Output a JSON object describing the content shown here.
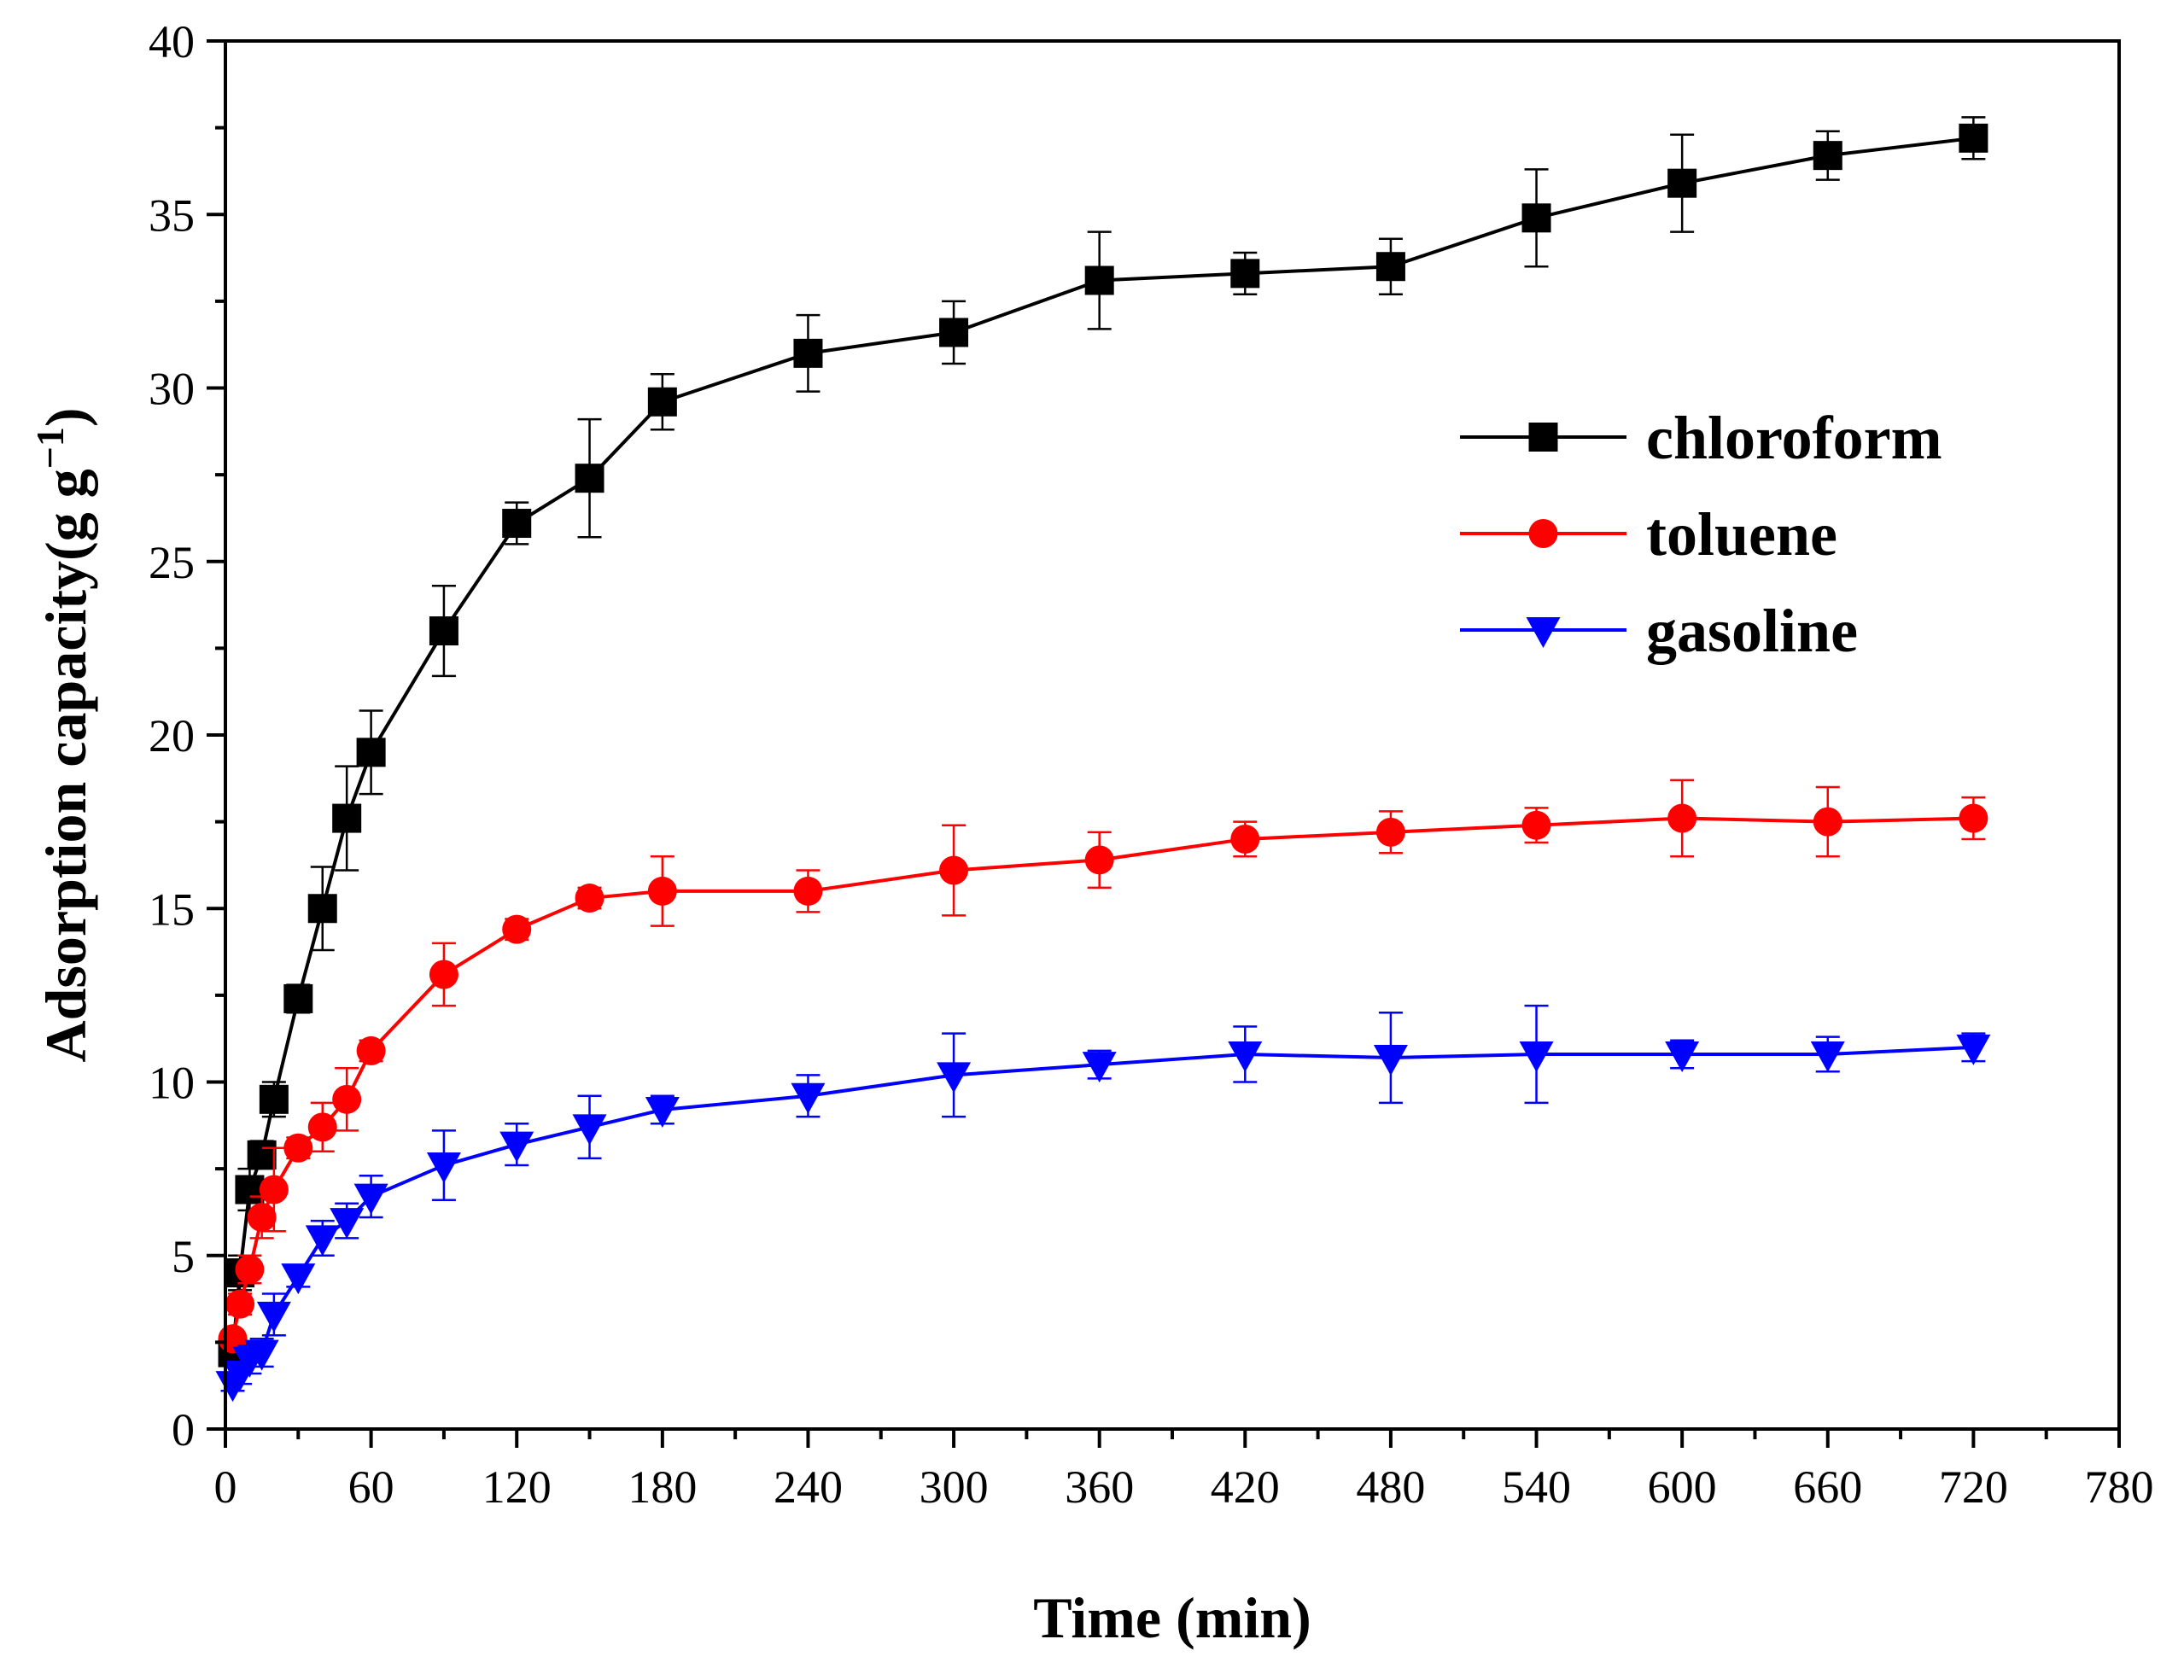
{
  "chart_data": {
    "type": "line",
    "title": "",
    "xlabel": "Time (min)",
    "ylabel": "Adsorption capacity(g g",
    "ylabel_sup": "−1",
    "ylabel_close": ")",
    "xlim": [
      0,
      780
    ],
    "ylim": [
      0,
      40
    ],
    "xticks": [
      0,
      60,
      120,
      180,
      240,
      300,
      360,
      420,
      480,
      540,
      600,
      660,
      720,
      780
    ],
    "xtick_labels": [
      "0",
      "60",
      "120",
      "180",
      "240",
      "300",
      "360",
      "420",
      "480",
      "540",
      "600",
      "660",
      "720",
      "780"
    ],
    "yticks": [
      0,
      5,
      10,
      15,
      20,
      25,
      30,
      35,
      40
    ],
    "ytick_labels": [
      "0",
      "5",
      "10",
      "15",
      "20",
      "25",
      "30",
      "35",
      "40"
    ],
    "x": [
      3,
      6,
      10,
      15,
      20,
      30,
      40,
      50,
      60,
      90,
      120,
      150,
      180,
      240,
      300,
      360,
      420,
      480,
      540,
      600,
      660,
      720
    ],
    "legend_position": "upper-right",
    "grid": false,
    "series": [
      {
        "name": "chloroform",
        "color": "#000000",
        "marker": "square",
        "values": [
          2.2,
          4.5,
          6.9,
          7.9,
          9.5,
          12.4,
          15.0,
          17.6,
          19.5,
          23.0,
          26.1,
          27.4,
          29.6,
          31.0,
          31.6,
          33.1,
          33.3,
          33.5,
          34.9,
          35.9,
          36.7,
          37.2
        ],
        "errors": [
          0.3,
          0.5,
          0.6,
          0.4,
          0.5,
          0.4,
          1.2,
          1.5,
          1.2,
          1.3,
          0.6,
          1.7,
          0.8,
          1.1,
          0.9,
          1.4,
          0.6,
          0.8,
          1.4,
          1.4,
          0.7,
          0.6
        ]
      },
      {
        "name": "toluene",
        "color": "#ff0000",
        "marker": "circle",
        "values": [
          2.6,
          3.6,
          4.6,
          6.1,
          6.9,
          8.1,
          8.7,
          9.5,
          10.9,
          13.1,
          14.4,
          15.3,
          15.5,
          15.5,
          16.1,
          16.4,
          17.0,
          17.2,
          17.4,
          17.6,
          17.5,
          17.6
        ],
        "errors": [
          0.2,
          0.3,
          0.4,
          0.6,
          1.2,
          0.3,
          0.7,
          0.9,
          0.3,
          0.9,
          0.3,
          0.3,
          1.0,
          0.6,
          1.3,
          0.8,
          0.5,
          0.6,
          0.5,
          1.1,
          1.0,
          0.6
        ]
      },
      {
        "name": "gasoline",
        "color": "#0000ff",
        "marker": "triangle-down",
        "values": [
          1.3,
          1.6,
          2.0,
          2.2,
          3.3,
          4.4,
          5.5,
          6.0,
          6.7,
          7.6,
          8.2,
          8.7,
          9.2,
          9.6,
          10.2,
          10.5,
          10.8,
          10.7,
          10.8,
          10.8,
          10.8,
          11.0
        ],
        "errors": [
          0.2,
          0.3,
          0.4,
          0.4,
          0.6,
          0.3,
          0.5,
          0.5,
          0.6,
          1.0,
          0.6,
          0.9,
          0.4,
          0.6,
          1.2,
          0.4,
          0.8,
          1.3,
          1.4,
          0.4,
          0.5,
          0.4
        ]
      }
    ]
  }
}
